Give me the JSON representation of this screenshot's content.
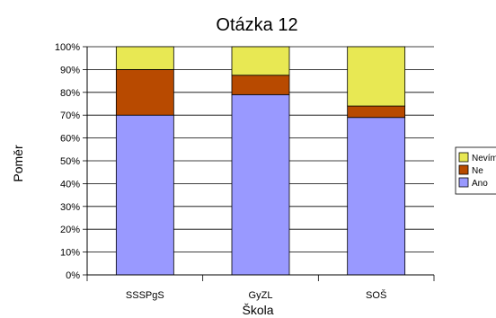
{
  "chart_data": {
    "type": "bar",
    "stacked": true,
    "title": "Otázka 12",
    "xlabel": "Škola",
    "ylabel": "Poměr",
    "ylim": [
      0,
      100
    ],
    "y_tick_labels": [
      "0%",
      "10%",
      "20%",
      "30%",
      "40%",
      "50%",
      "60%",
      "70%",
      "80%",
      "90%",
      "100%"
    ],
    "categories": [
      "SSSPgS",
      "GyZL",
      "SOŠ"
    ],
    "series": [
      {
        "name": "Ano",
        "color": "#9999ff",
        "values": [
          70,
          79,
          69
        ]
      },
      {
        "name": "Ne",
        "color": "#b84a00",
        "values": [
          20,
          8.5,
          5
        ]
      },
      {
        "name": "Nevím",
        "color": "#e8e853",
        "values": [
          10,
          12.5,
          26
        ]
      }
    ],
    "legend": {
      "placement": "right",
      "labels": [
        "Nevím",
        "Ne",
        "Ano"
      ]
    },
    "grid": true
  }
}
